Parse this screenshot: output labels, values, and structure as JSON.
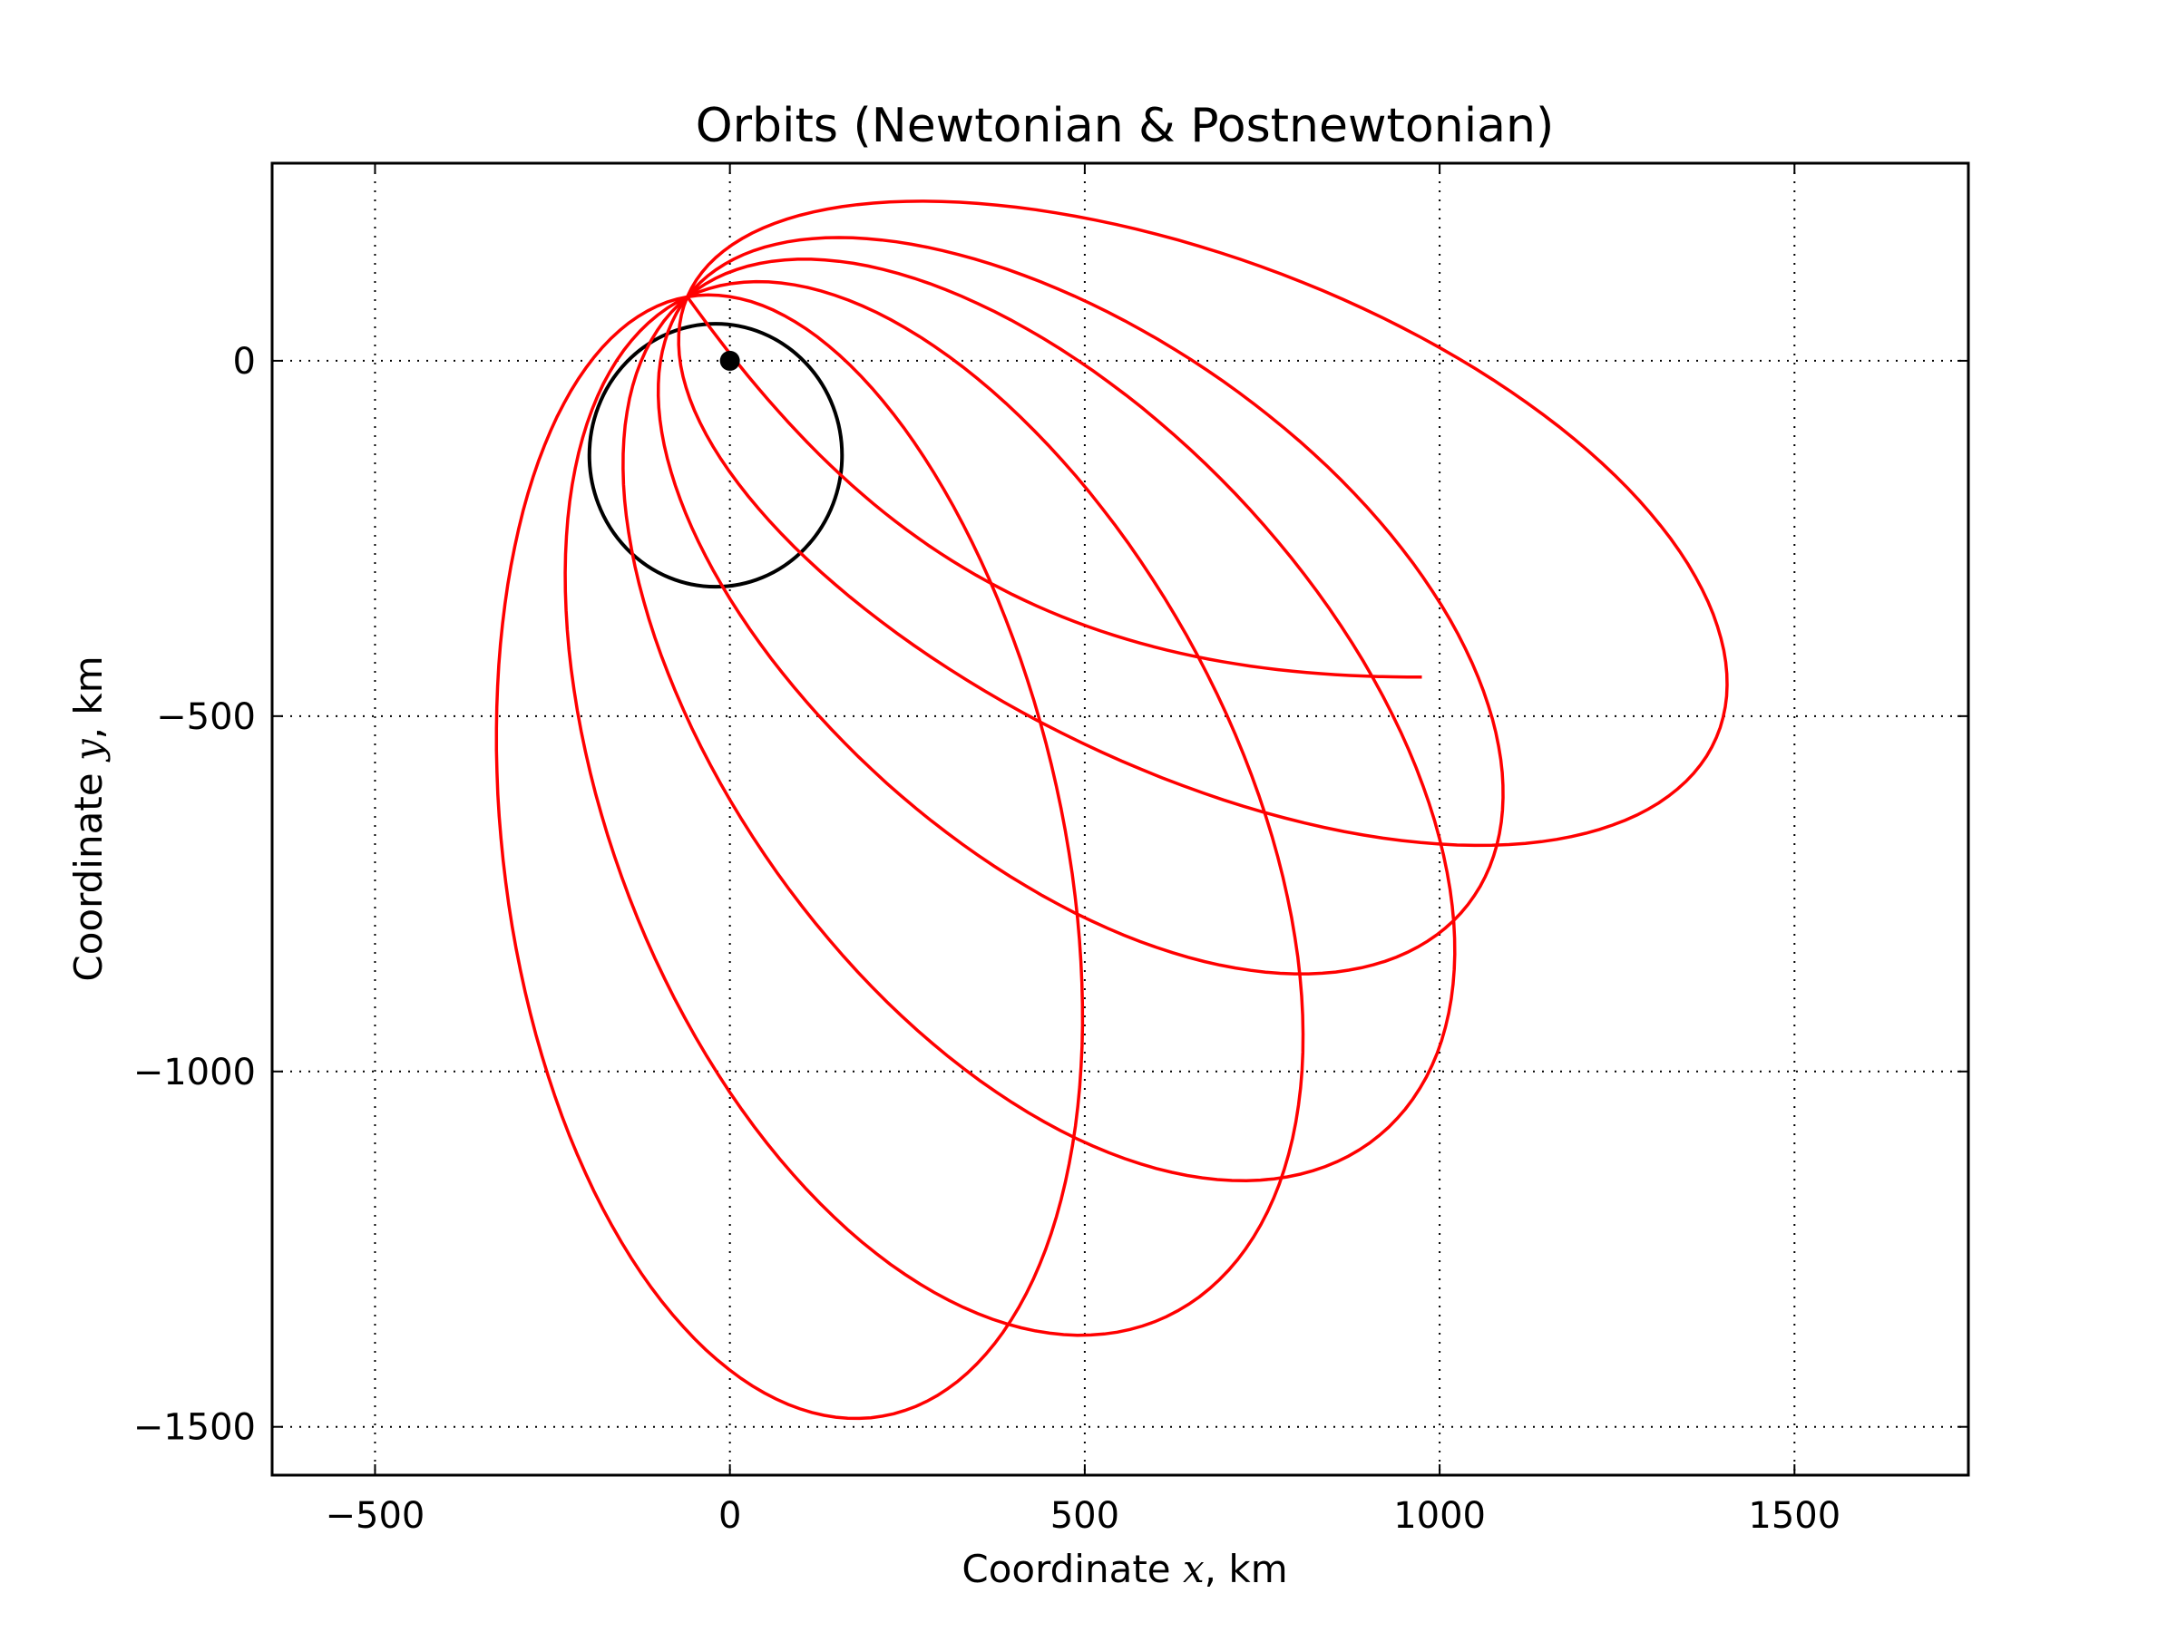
{
  "chart_data": {
    "type": "line",
    "title": "Orbits (Newtonian & Postnewtonian)",
    "xlabel_prefix": "Coordinate ",
    "xlabel_var": "x",
    "xlabel_suffix": ", km",
    "ylabel_prefix": "Coordinate ",
    "ylabel_var": "y",
    "ylabel_suffix": ", km",
    "xlim": [
      -500,
      1500
    ],
    "ylim": [
      -1500,
      0
    ],
    "x_ticks": [
      -500,
      0,
      500,
      1000,
      1500
    ],
    "x_tick_labels": [
      "−500",
      "0",
      "500",
      "1000",
      "1500"
    ],
    "y_ticks": [
      0,
      -500,
      -1000,
      -1500
    ],
    "y_tick_labels": [
      "0",
      "−500",
      "−1000",
      "−1500"
    ],
    "grid": true,
    "central_body": {
      "x": 0,
      "y": 0
    },
    "series": [
      {
        "color": "#000000",
        "kind": "ellipse",
        "center": [
          -20,
          -133
        ],
        "semi_axes": [
          178,
          185
        ],
        "rotation_deg": 0
      },
      {
        "color": "#ff0000",
        "kind": "precessing-orbit",
        "periapsis": [
          -60,
          90
        ],
        "apoapses": [
          [
            215,
            -1485
          ],
          [
            615,
            -1345
          ],
          [
            915,
            -1090
          ],
          [
            1040,
            -765
          ],
          [
            1390,
            -530
          ]
        ],
        "end_point": [
          975,
          -445
        ]
      }
    ]
  }
}
